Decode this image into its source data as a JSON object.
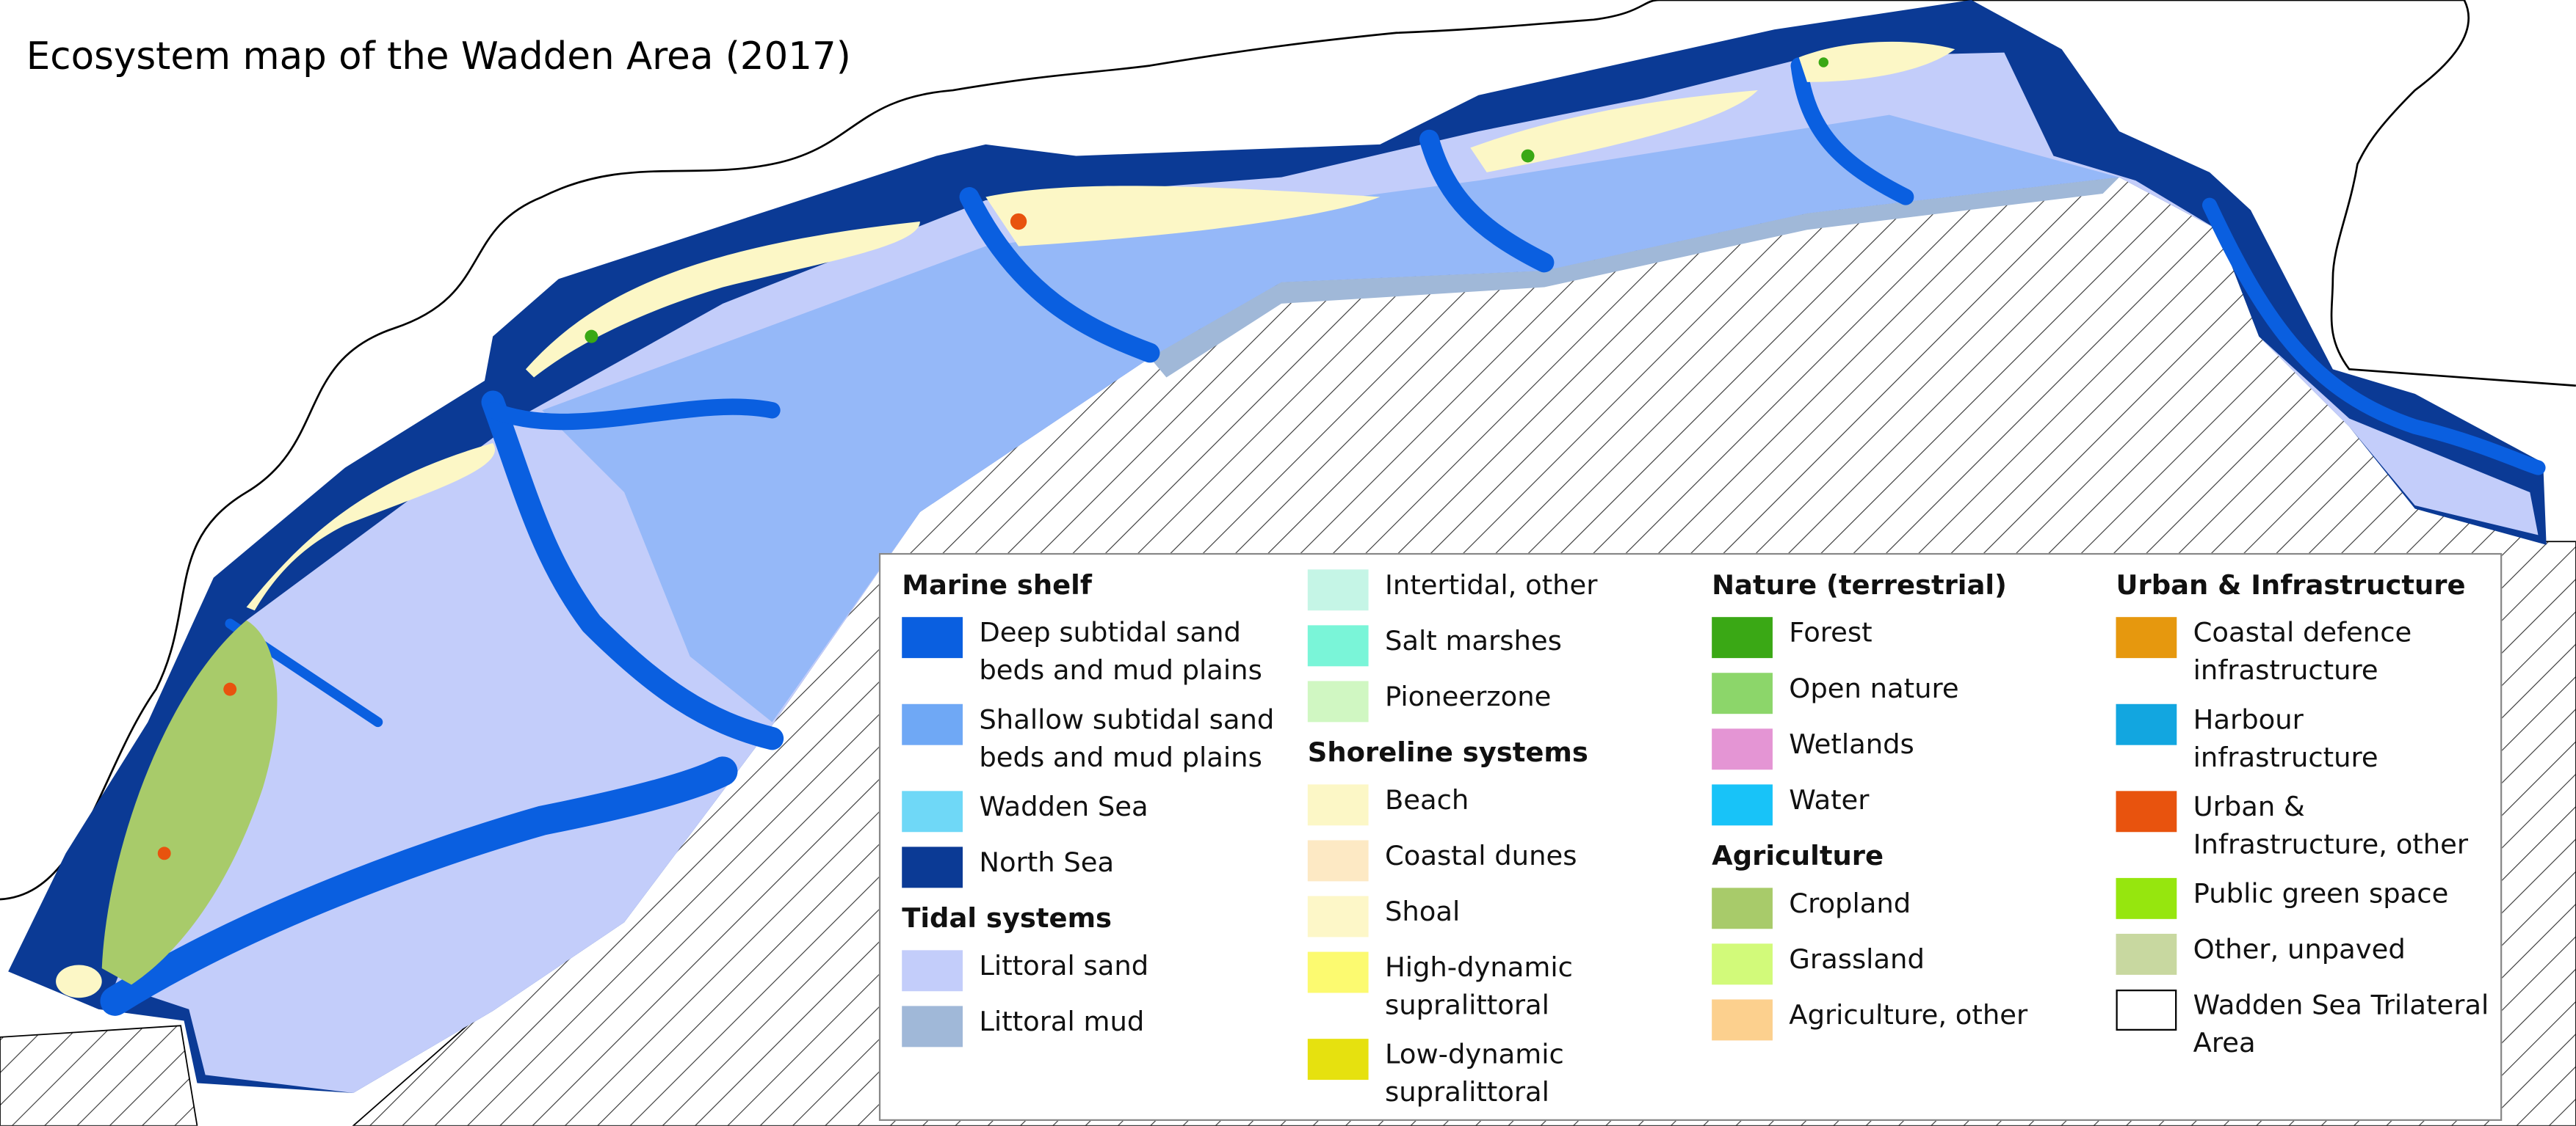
{
  "title": "Ecosystem map of the Wadden Area (2017)",
  "legend": {
    "columns": [
      [
        {
          "heading": "Marine shelf",
          "items": [
            {
              "label": "Deep subtidal sand beds and mud plains",
              "color": "#0a5fe0"
            },
            {
              "label": "Shallow subtidal sand beds and mud plains",
              "color": "#6fa8f5"
            },
            {
              "label": "Wadden Sea",
              "color": "#6fd8f7"
            },
            {
              "label": "North Sea",
              "color": "#0b3a95"
            }
          ]
        },
        {
          "heading": "Tidal systems",
          "items": [
            {
              "label": "Littoral sand",
              "color": "#c3cdfa"
            },
            {
              "label": "Littoral mud",
              "color": "#a0b8d8"
            }
          ]
        }
      ],
      [
        {
          "items": [
            {
              "label": "Intertidal, other",
              "color": "#c5f5e6"
            },
            {
              "label": "Salt marshes",
              "color": "#7af5d8"
            },
            {
              "label": "Pioneerzone",
              "color": "#d0f7c2"
            }
          ]
        },
        {
          "heading": "Shoreline systems",
          "items": [
            {
              "label": "Beach",
              "color": "#fcf7c6"
            },
            {
              "label": "Coastal dunes",
              "color": "#fde9c4"
            },
            {
              "label": "Shoal",
              "color": "#fdf7c8"
            },
            {
              "label": "High-dynamic supralittoral",
              "color": "#fcfa70"
            },
            {
              "label": "Low-dynamic supralittoral",
              "color": "#e6e10f"
            }
          ]
        }
      ],
      [
        {
          "heading": "Nature (terrestrial)",
          "items": [
            {
              "label": "Forest",
              "color": "#3aa815"
            },
            {
              "label": "Open nature",
              "color": "#8cd66a"
            },
            {
              "label": "Wetlands",
              "color": "#e495d4"
            },
            {
              "label": "Water",
              "color": "#18c3f8"
            }
          ]
        },
        {
          "heading": "Agriculture",
          "items": [
            {
              "label": "Cropland",
              "color": "#a8cb6a"
            },
            {
              "label": "Grassland",
              "color": "#d2fa7a"
            },
            {
              "label": "Agriculture, other",
              "color": "#fcd08e"
            }
          ]
        }
      ],
      [
        {
          "heading": "Urban & Infrastructure",
          "items": [
            {
              "label": "Coastal defence infrastructure",
              "color": "#e6980e"
            },
            {
              "label": "Harbour infrastructure",
              "color": "#12a6e0"
            },
            {
              "label": "Urban & Infrastructure, other",
              "color": "#e8530e"
            },
            {
              "label": "Public green space",
              "color": "#96e60e"
            },
            {
              "label": "Other, unpaved",
              "color": "#c8d8a0"
            },
            {
              "label": "Wadden Sea Trilateral Area",
              "color": "#ffffff"
            }
          ]
        }
      ]
    ]
  }
}
